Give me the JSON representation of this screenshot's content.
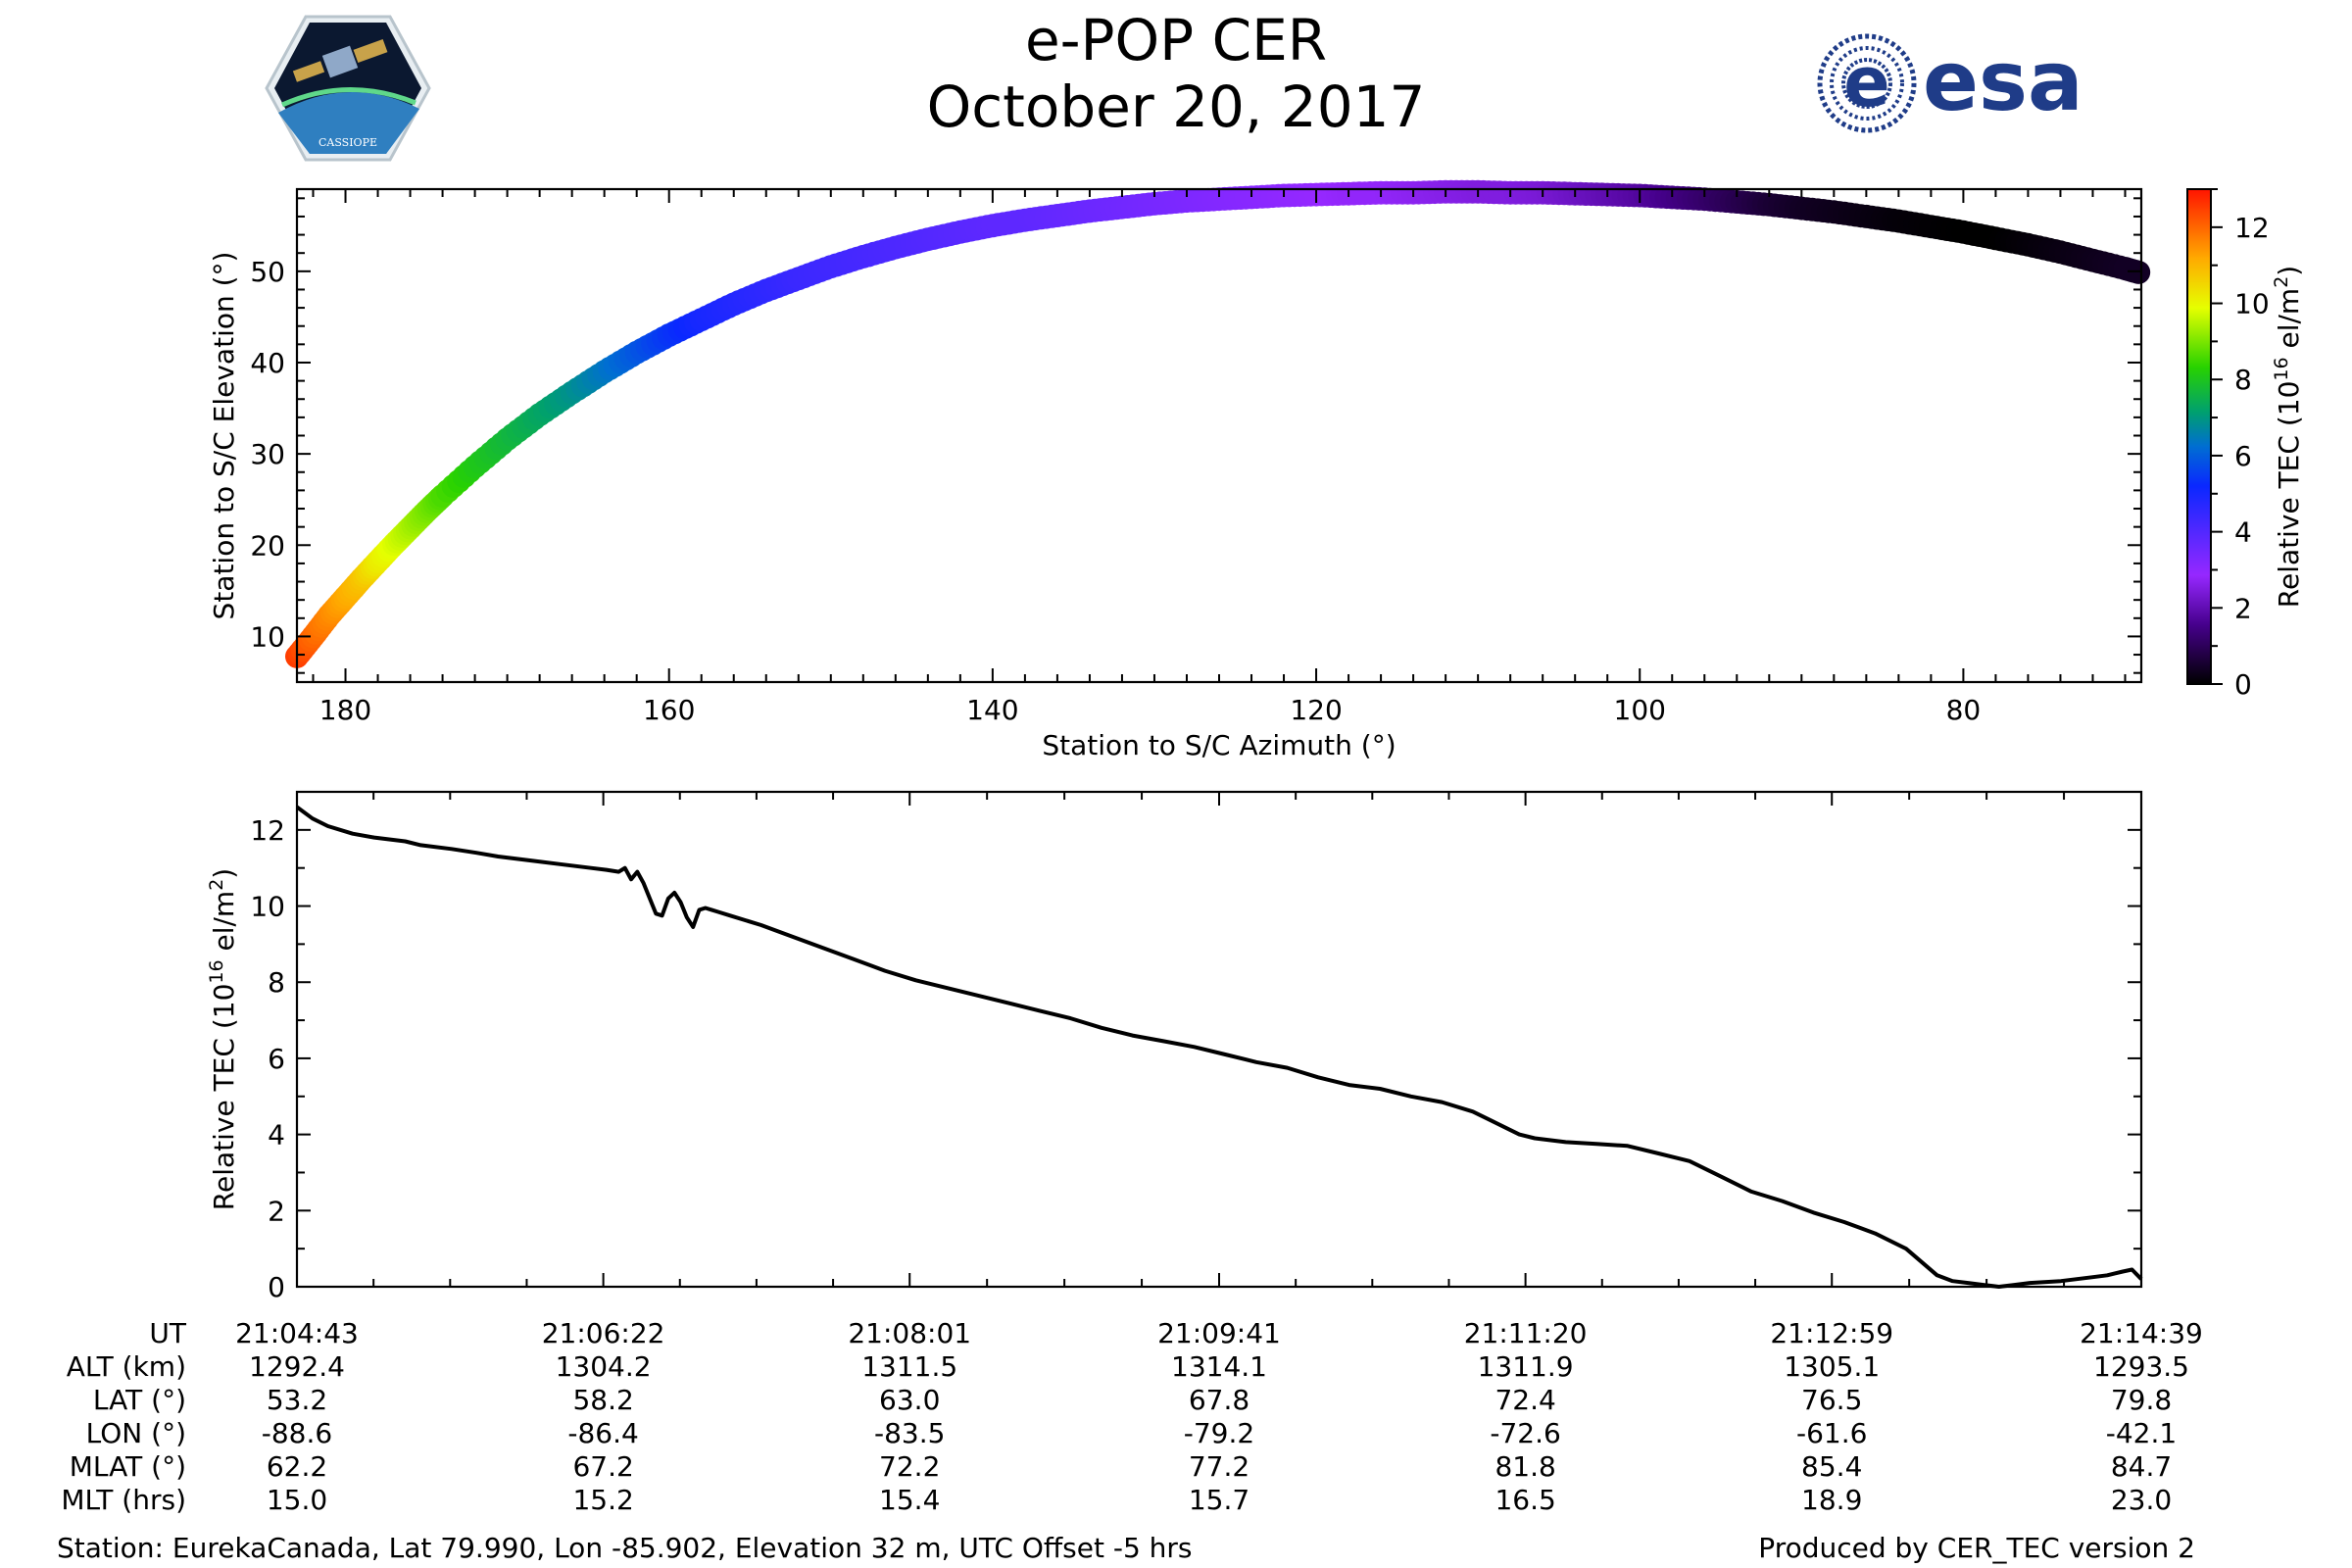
{
  "header": {
    "title": "e-POP CER",
    "subtitle": "October 20, 2017",
    "left_logo": {
      "icon": "cassiope-satellite-logo",
      "text": "CASSIOPE"
    },
    "right_logo": {
      "icon": "esa-logo",
      "text": "esa",
      "color": "#1f3c88"
    }
  },
  "chart_data": [
    {
      "type": "scatter",
      "xlabel": "Station to S/C Azimuth (°)",
      "ylabel": "Station to S/C Elevation (°)",
      "xlim": [
        183,
        69
      ],
      "ylim": [
        5,
        59
      ],
      "xticks": [
        180,
        160,
        140,
        120,
        100,
        80
      ],
      "yticks": [
        10,
        20,
        30,
        40,
        50
      ],
      "colormap": "gnuplot2_r-rainbow",
      "colorbar": {
        "label": "Relative TEC (10¹⁶ el/m²)",
        "ticks": [
          0,
          2,
          4,
          6,
          8,
          10,
          12
        ],
        "range": [
          0,
          13
        ]
      },
      "series": [
        {
          "azimuth": [
            183,
            182,
            181,
            180,
            179,
            178,
            177,
            176,
            175,
            174,
            172,
            170,
            168,
            166,
            164,
            162,
            160,
            158,
            156,
            154,
            152,
            150,
            148,
            146,
            144,
            142,
            140,
            138,
            136,
            134,
            132,
            130,
            128,
            126,
            124,
            122,
            120,
            118,
            116,
            114,
            112,
            110,
            108,
            106,
            104,
            102,
            100,
            98,
            96,
            94,
            92,
            90,
            88,
            86,
            84,
            82,
            80,
            78,
            76,
            74,
            72,
            70,
            69
          ],
          "elevation": [
            7.8,
            10.0,
            12.3,
            14.3,
            16.3,
            18.2,
            20.1,
            21.9,
            23.7,
            25.4,
            28.6,
            31.6,
            34.3,
            36.7,
            39.0,
            41.1,
            43.0,
            44.7,
            46.4,
            47.9,
            49.2,
            50.5,
            51.6,
            52.6,
            53.5,
            54.3,
            55.0,
            55.6,
            56.1,
            56.6,
            57.0,
            57.4,
            57.7,
            57.9,
            58.1,
            58.3,
            58.4,
            58.5,
            58.6,
            58.6,
            58.7,
            58.7,
            58.6,
            58.6,
            58.5,
            58.4,
            58.3,
            58.1,
            57.9,
            57.6,
            57.3,
            56.9,
            56.5,
            56.0,
            55.5,
            54.9,
            54.3,
            53.6,
            52.9,
            52.1,
            51.2,
            50.3,
            49.8
          ],
          "tec": [
            12.5,
            12.0,
            11.6,
            11.2,
            10.8,
            10.2,
            9.8,
            9.4,
            9.0,
            8.6,
            8.1,
            7.7,
            7.3,
            6.9,
            6.4,
            5.9,
            5.4,
            5.0,
            4.8,
            4.6,
            4.4,
            4.3,
            4.2,
            4.1,
            4.0,
            3.9,
            3.8,
            3.8,
            3.7,
            3.6,
            3.5,
            3.4,
            3.3,
            3.2,
            3.1,
            3.0,
            2.9,
            2.8,
            2.8,
            2.7,
            2.6,
            2.5,
            2.5,
            2.4,
            2.2,
            2.0,
            1.8,
            1.5,
            1.2,
            0.9,
            0.6,
            0.4,
            0.3,
            0.2,
            0.1,
            0.05,
            0.0,
            0.0,
            0.1,
            0.2,
            0.3,
            0.4,
            0.4
          ]
        }
      ]
    },
    {
      "type": "line",
      "xlabel": "",
      "ylabel": "Relative TEC (10¹⁶ el/m²)",
      "ylim": [
        0,
        13
      ],
      "yticks": [
        0,
        2,
        4,
        6,
        8,
        10,
        12
      ],
      "xlim": [
        0,
        596
      ],
      "xtick_seconds": [
        0,
        99,
        198,
        298,
        397,
        496,
        596
      ],
      "series": [
        {
          "line_color": "#000000",
          "t": [
            0,
            5,
            10,
            18,
            25,
            35,
            40,
            50,
            58,
            65,
            75,
            85,
            95,
            100,
            104,
            106,
            108,
            110,
            112,
            114,
            116,
            118,
            120,
            122,
            124,
            126,
            128,
            130,
            132,
            134,
            136,
            140,
            150,
            160,
            170,
            180,
            190,
            200,
            210,
            220,
            230,
            240,
            250,
            260,
            270,
            280,
            290,
            300,
            310,
            320,
            330,
            340,
            350,
            360,
            370,
            380,
            390,
            395,
            400,
            410,
            420,
            430,
            440,
            450,
            460,
            470,
            480,
            490,
            500,
            505,
            510,
            520,
            530,
            535,
            540,
            545,
            550,
            555,
            560,
            570,
            580,
            585,
            590,
            593,
            596
          ],
          "tec": [
            12.6,
            12.3,
            12.1,
            11.9,
            11.8,
            11.7,
            11.6,
            11.5,
            11.4,
            11.3,
            11.2,
            11.1,
            11.0,
            10.95,
            10.9,
            11.0,
            10.7,
            10.9,
            10.6,
            10.2,
            9.8,
            9.75,
            10.2,
            10.35,
            10.1,
            9.7,
            9.45,
            9.9,
            9.95,
            9.9,
            9.85,
            9.75,
            9.5,
            9.2,
            8.9,
            8.6,
            8.3,
            8.05,
            7.85,
            7.65,
            7.45,
            7.25,
            7.05,
            6.8,
            6.6,
            6.45,
            6.3,
            6.1,
            5.9,
            5.75,
            5.5,
            5.3,
            5.2,
            5.0,
            4.85,
            4.6,
            4.2,
            4.0,
            3.9,
            3.8,
            3.75,
            3.7,
            3.5,
            3.3,
            2.9,
            2.5,
            2.25,
            1.95,
            1.7,
            1.55,
            1.4,
            1.0,
            0.3,
            0.15,
            0.1,
            0.05,
            0.0,
            0.05,
            0.1,
            0.15,
            0.25,
            0.3,
            0.4,
            0.45,
            0.2
          ]
        }
      ]
    }
  ],
  "ephemeris_table": {
    "row_labels": [
      "UT",
      "ALT (km)",
      "LAT (°)",
      "LON (°)",
      "MLAT (°)",
      "MLT (hrs)"
    ],
    "columns": [
      [
        "21:04:43",
        "1292.4",
        "53.2",
        "-88.6",
        "62.2",
        "15.0"
      ],
      [
        "21:06:22",
        "1304.2",
        "58.2",
        "-86.4",
        "67.2",
        "15.2"
      ],
      [
        "21:08:01",
        "1311.5",
        "63.0",
        "-83.5",
        "72.2",
        "15.4"
      ],
      [
        "21:09:41",
        "1314.1",
        "67.8",
        "-79.2",
        "77.2",
        "15.7"
      ],
      [
        "21:11:20",
        "1311.9",
        "72.4",
        "-72.6",
        "81.8",
        "16.5"
      ],
      [
        "21:12:59",
        "1305.1",
        "76.5",
        "-61.6",
        "85.4",
        "18.9"
      ],
      [
        "21:14:39",
        "1293.5",
        "79.8",
        "-42.1",
        "84.7",
        "23.0"
      ]
    ]
  },
  "footer": {
    "station": "Station: EurekaCanada, Lat 79.990, Lon -85.902, Elevation 32 m, UTC Offset -5 hrs",
    "produced": "Produced by CER_TEC version 2"
  }
}
